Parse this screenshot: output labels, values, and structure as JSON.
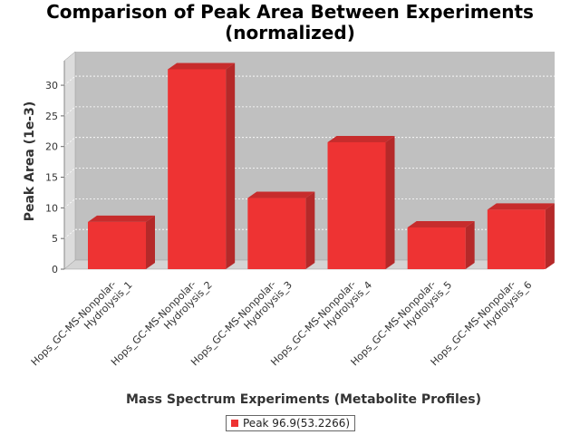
{
  "chart_data": {
    "type": "bar",
    "title": "Comparison of Peak Area Between Experiments\n(normalized)",
    "xlabel": "Mass Spectrum Experiments (Metabolite Profiles)",
    "ylabel": "Peak Area (1e-3)",
    "categories": [
      "Hops_GC-MS-Nonpolar-Hydrolysis_1",
      "Hops_GC-MS-Nonpolar-Hydrolysis_2",
      "Hops_GC-MS-Nonpolar-Hydrolysis_3",
      "Hops_GC-MS-Nonpolar-Hydrolysis_4",
      "Hops_GC-MS-Nonpolar-Hydrolysis_5",
      "Hops_GC-MS-Nonpolar-Hydrolysis_6"
    ],
    "category_lines": [
      [
        "Hops_GC-MS-Nonpolar-",
        "Hydrolysis_1"
      ],
      [
        "Hops_GC-MS-Nonpolar-",
        "Hydrolysis_2"
      ],
      [
        "Hops_GC-MS-Nonpolar-",
        "Hydrolysis_3"
      ],
      [
        "Hops_GC-MS-Nonpolar-",
        "Hydrolysis_4"
      ],
      [
        "Hops_GC-MS-Nonpolar-",
        "Hydrolysis_5"
      ],
      [
        "Hops_GC-MS-Nonpolar-",
        "Hydrolysis_6"
      ]
    ],
    "series": [
      {
        "name": "Peak 96.9(53.2266)",
        "values": [
          7.7,
          32.6,
          11.6,
          20.7,
          6.8,
          9.7
        ]
      }
    ],
    "ylim": [
      0,
      34
    ],
    "yticks": [
      0,
      5,
      10,
      15,
      20,
      25,
      30
    ],
    "grid": true,
    "legend_position": "bottom",
    "colors": {
      "bar_front": "#ee3333",
      "bar_side": "#b52929",
      "bar_top": "#c72c2c",
      "plot_back": "#c0c0c0",
      "plot_floor": "#d4d4d4",
      "gridline": "#ffffff"
    }
  }
}
